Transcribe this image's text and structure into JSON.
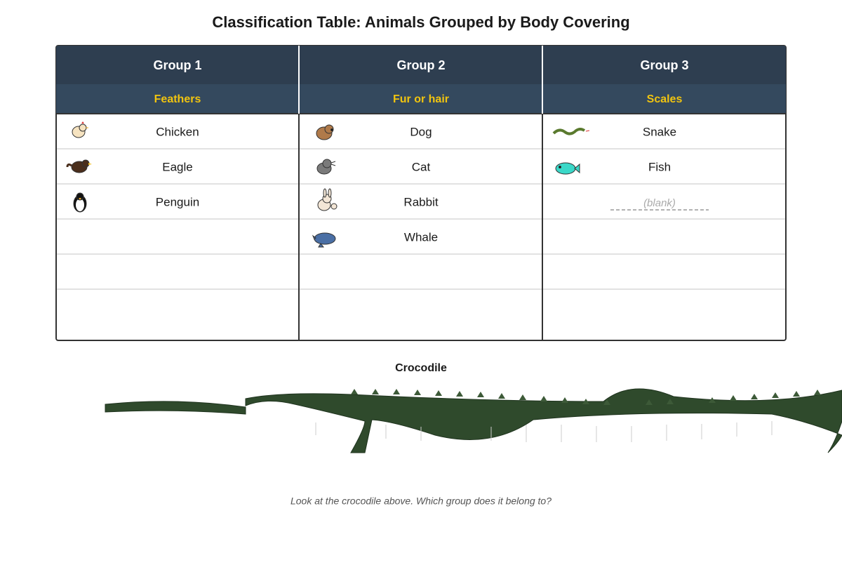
{
  "title": "Classification Table: Animals Grouped by Body Covering",
  "table": {
    "groups": [
      {
        "name": "Group 1",
        "covering": "Feathers",
        "animals": [
          "Chicken",
          "Eagle",
          "Penguin"
        ]
      },
      {
        "name": "Group 2",
        "covering": "Fur or hair",
        "animals": [
          "Dog",
          "Cat",
          "Rabbit",
          "Whale"
        ]
      },
      {
        "name": "Group 3",
        "covering": "Scales",
        "animals": [
          "Snake",
          "Fish"
        ],
        "blank": "(blank)"
      }
    ]
  },
  "picture": {
    "label": "Crocodile"
  },
  "question": "Look at the crocodile above. Which group does it belong to?"
}
